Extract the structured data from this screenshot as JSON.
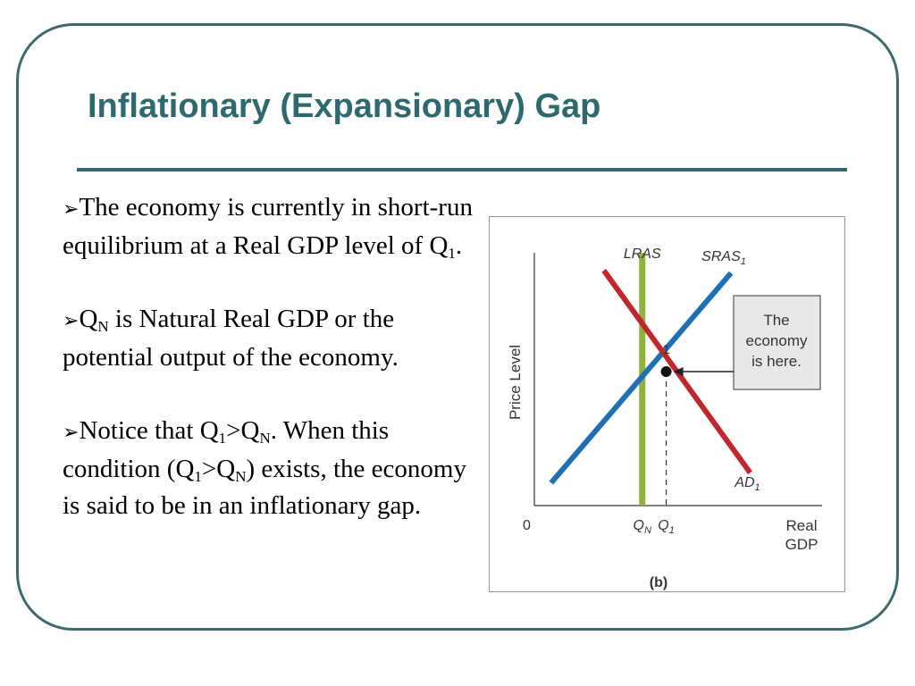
{
  "slide": {
    "title": "Inflationary (Expansionary) Gap",
    "theme_color": "#2e6a6d"
  },
  "bullets": [
    {
      "arrow_icon": "arrow-bullet-icon",
      "parts": [
        {
          "text": "The economy is currently in short-run equilibrium at a Real GDP level of Q"
        },
        {
          "text": "1",
          "sub": true
        },
        {
          "text": "."
        }
      ]
    },
    {
      "arrow_icon": "arrow-bullet-icon",
      "parts": [
        {
          "text": "Q"
        },
        {
          "text": "N",
          "sub": true
        },
        {
          "text": " is Natural Real GDP or the potential output of the economy."
        }
      ]
    },
    {
      "arrow_icon": "arrow-bullet-icon",
      "parts": [
        {
          "text": "Notice that Q"
        },
        {
          "text": "1",
          "sub": true
        },
        {
          "text": ">Q"
        },
        {
          "text": "N",
          "sub": true
        },
        {
          "text": ". When this condition (Q"
        },
        {
          "text": "1",
          "sub": true
        },
        {
          "text": ">Q"
        },
        {
          "text": "N",
          "sub": true
        },
        {
          "text": ") exists, the economy is said to be in an inflationary gap."
        }
      ]
    }
  ],
  "chart_data": {
    "type": "line",
    "ylabel": "Price Level",
    "xlabel_lines": [
      "Real",
      "GDP"
    ],
    "origin_label": "0",
    "caption": "(b)",
    "x_ticks": [
      {
        "base": "Q",
        "sub": "N",
        "x": 4.5
      },
      {
        "base": "Q",
        "sub": "1",
        "x": 5.5
      }
    ],
    "xlim": [
      0,
      12
    ],
    "ylim": [
      0,
      10
    ],
    "series": [
      {
        "name": "LRAS",
        "label_base": "LRAS",
        "label_sub": "",
        "color": "#8db33a",
        "x": [
          4.5,
          4.5
        ],
        "y": [
          0,
          10
        ]
      },
      {
        "name": "SRAS1",
        "label_base": "SRAS",
        "label_sub": "1",
        "color": "#1f6fb5",
        "x": [
          0.7,
          8.2
        ],
        "y": [
          0.9,
          9.2
        ]
      },
      {
        "name": "AD1",
        "label_base": "AD",
        "label_sub": "1",
        "color": "#c0272d",
        "x": [
          2.9,
          9.0
        ],
        "y": [
          9.3,
          1.3
        ]
      }
    ],
    "equilibrium": {
      "label": "1",
      "x": 5.5,
      "y": 5.3
    },
    "callout_lines": [
      "The",
      "economy",
      "is here."
    ]
  }
}
